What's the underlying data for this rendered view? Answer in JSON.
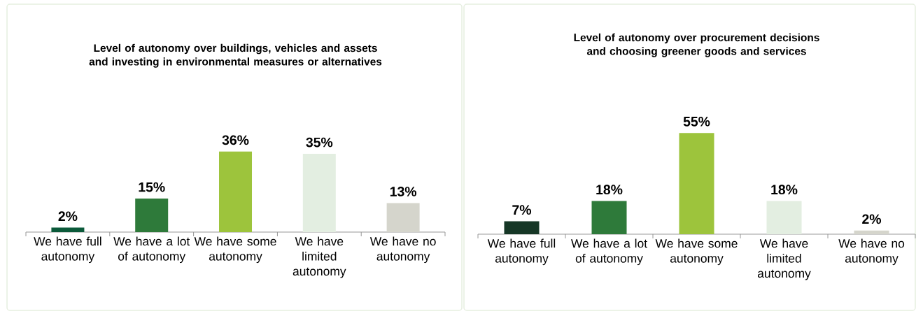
{
  "chart_data": [
    {
      "type": "bar",
      "title": "Level of autonomy over buildings, vehicles and assets and investing in environmental measures or alternatives",
      "categories": [
        "We have full autonomy",
        "We have a lot of autonomy",
        "We have some autonomy",
        "We have limited autonomy",
        "We have no autonomy"
      ],
      "values": [
        2,
        15,
        36,
        35,
        13
      ],
      "colors": [
        "#0b5a3a",
        "#2e7a3a",
        "#9dc43c",
        "#e3eee1",
        "#d5d5cc"
      ],
      "value_labels": [
        "2%",
        "15%",
        "36%",
        "35%",
        "13%"
      ]
    },
    {
      "type": "bar",
      "title": "Level of autonomy over procurement decisions and choosing greener goods and services",
      "categories": [
        "We have full autonomy",
        "We have a lot of autonomy",
        "We have some autonomy",
        "We have limited autonomy",
        "We have no autonomy"
      ],
      "values": [
        7,
        18,
        55,
        18,
        2
      ],
      "colors": [
        "#163726",
        "#2e7a3a",
        "#9dc43c",
        "#e3eee1",
        "#d5d5cc"
      ],
      "value_labels": [
        "7%",
        "18%",
        "55%",
        "18%",
        "2%"
      ]
    }
  ]
}
